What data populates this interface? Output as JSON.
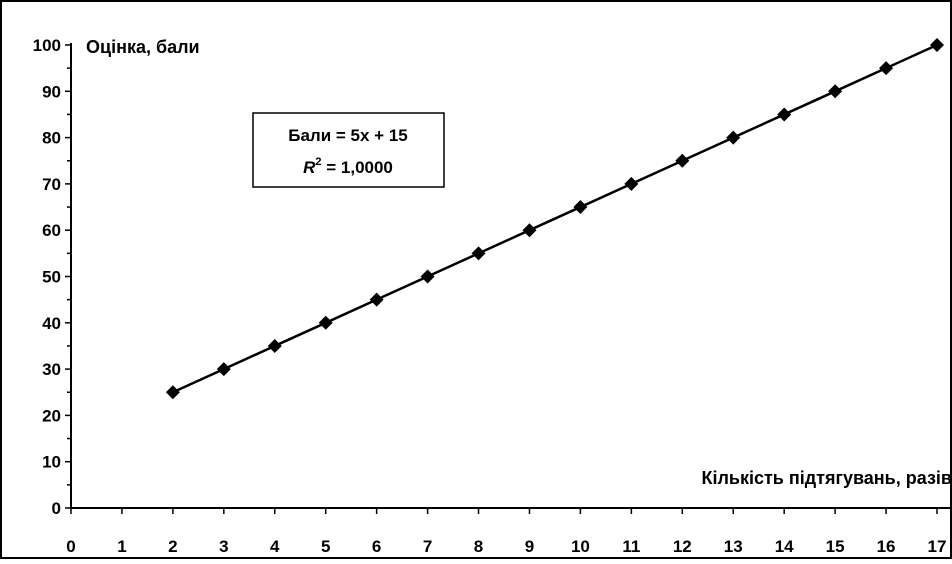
{
  "chart_data": {
    "type": "line",
    "x": [
      2,
      3,
      4,
      5,
      6,
      7,
      8,
      9,
      10,
      11,
      12,
      13,
      14,
      15,
      16,
      17
    ],
    "series": [
      {
        "values": [
          25,
          30,
          35,
          40,
          45,
          50,
          55,
          60,
          65,
          70,
          75,
          80,
          85,
          90,
          95,
          100
        ]
      }
    ],
    "xlabel": "Кількість підтягувань, разів",
    "ylabel": "Оцінка, бали",
    "xlim": [
      0,
      17
    ],
    "ylim": [
      0,
      100
    ],
    "x_ticks": [
      "0",
      "1",
      "2",
      "3",
      "4",
      "5",
      "6",
      "7",
      "8",
      "9",
      "10",
      "11",
      "12",
      "13",
      "14",
      "15",
      "16",
      "17"
    ],
    "y_ticks": [
      "0",
      "10",
      "20",
      "30",
      "40",
      "50",
      "60",
      "70",
      "80",
      "90",
      "100"
    ],
    "marker": "diamond",
    "grid": false,
    "annotation": {
      "line1": "Бали = 5x + 15",
      "line2_r": "R",
      "line2_sup": "2",
      "line2_value": " = 1,0000"
    },
    "colors": {
      "line": "#000000",
      "marker": "#000000",
      "border": "#000000"
    }
  }
}
